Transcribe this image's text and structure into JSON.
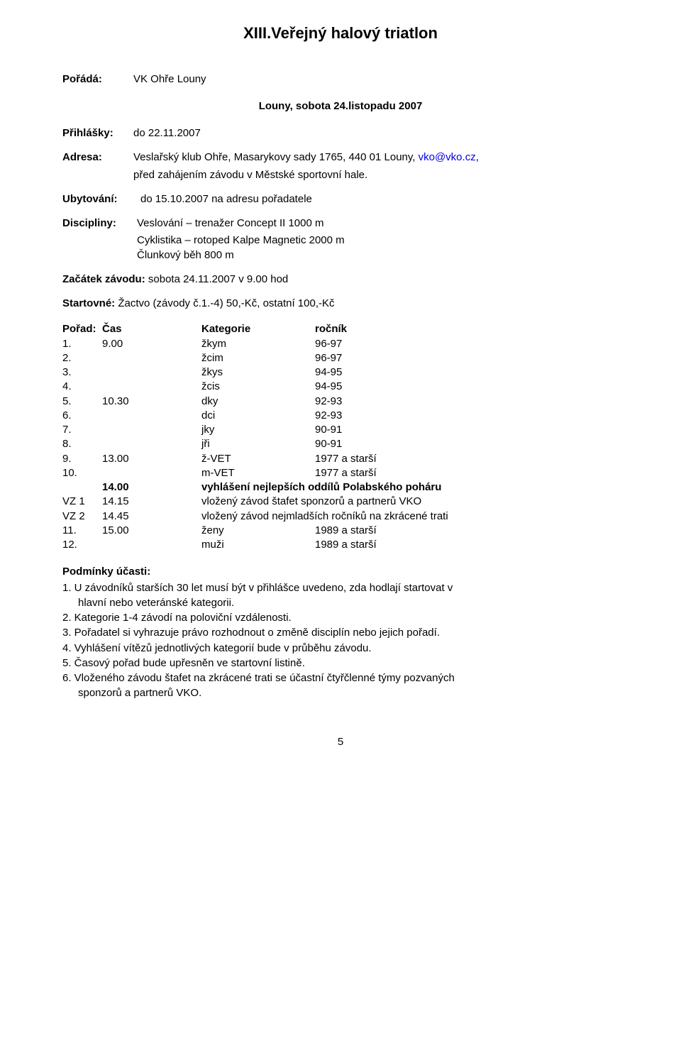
{
  "title": "XIII.Veřejný halový triatlon",
  "organizer": {
    "label": "Pořádá:",
    "value": "VK Ohře Louny"
  },
  "subtitle": "Louny,  sobota 24.listopadu 2007",
  "entries": {
    "label": "Přihlášky:",
    "value": "do 22.11.2007"
  },
  "address": {
    "label": "Adresa:",
    "line1_pre": "Veslařský klub Ohře, Masarykovy sady 1765, 440 01 Louny, ",
    "link": "vko@vko.cz",
    "line1_post": ",",
    "line2": "před zahájením závodu v Městské sportovní hale."
  },
  "accommodation": {
    "label": "Ubytování:",
    "value": "do 15.10.2007 na adresu pořadatele"
  },
  "disciplines": {
    "label": "Discipliny:",
    "lines": [
      "Veslování – trenažer Concept II 1000 m",
      "Cyklistika – rotoped Kalpe Magnetic 2000 m",
      "Člunkový běh 800 m"
    ]
  },
  "start": {
    "label": "Začátek závodu:",
    "value": " sobota 24.11.2007 v 9.00 hod"
  },
  "fee": {
    "label": "Startovné:",
    "value": " Žactvo (závody č.1.-4) 50,-Kč, ostatní 100,-Kč"
  },
  "schedule_header": {
    "porad": "Pořad:",
    "cas": "Čas",
    "kategorie": "Kategorie",
    "rocnik": "ročník"
  },
  "schedule": [
    {
      "num": "1.",
      "time": "9.00",
      "cat": "žkym",
      "year": "96-97"
    },
    {
      "num": "2.",
      "time": "",
      "cat": "žcim",
      "year": "96-97"
    },
    {
      "num": "3.",
      "time": "",
      "cat": "žkys",
      "year": "94-95"
    },
    {
      "num": "4.",
      "time": "",
      "cat": "žcis",
      "year": "94-95"
    },
    {
      "num": "5.",
      "time": "10.30",
      "cat": "dky",
      "year": "92-93"
    },
    {
      "num": "6.",
      "time": "",
      "cat": "dci",
      "year": "92-93"
    },
    {
      "num": "7.",
      "time": "",
      "cat": "jky",
      "year": "90-91"
    },
    {
      "num": "8.",
      "time": "",
      "cat": "jři",
      "year": "90-91"
    },
    {
      "num": "9.",
      "time": "13.00",
      "cat": "ž-VET",
      "year": "1977 a starší"
    },
    {
      "num": "10.",
      "time": "",
      "cat": "m-VET",
      "year": "1977 a starší"
    }
  ],
  "special_rows": [
    {
      "num": "",
      "time": "14.00",
      "text": "vyhlášení nejlepších oddílů Polabského poháru",
      "bold": true
    },
    {
      "num": "VZ 1",
      "time": "14.15",
      "text": "vložený závod štafet sponzorů a partnerů VKO",
      "bold": false
    },
    {
      "num": "VZ 2",
      "time": "14.45",
      "text": "vložený závod nejmladších ročníků na zkrácené trati",
      "bold": false
    }
  ],
  "schedule_tail": [
    {
      "num": "11.",
      "time": "15.00",
      "cat": "ženy",
      "year": "1989 a starší"
    },
    {
      "num": "12.",
      "time": "",
      "cat": "muži",
      "year": "1989 a starší"
    }
  ],
  "conditions": {
    "title": "Podmínky účasti:",
    "items": [
      {
        "n": "1.",
        "text": "U závodníků starších 30 let musí být v přihlášce uvedeno, zda hodlají startovat v",
        "sub": "hlavní nebo veteránské kategorii."
      },
      {
        "n": "2.",
        "text": "Kategorie 1-4 závodí na poloviční vzdálenosti."
      },
      {
        "n": "3.",
        "text": "Pořadatel si vyhrazuje právo rozhodnout o změně disciplín nebo jejich pořadí."
      },
      {
        "n": "4.",
        "text": "Vyhlášení vítězů jednotlivých kategorií bude v průběhu závodu."
      },
      {
        "n": "5.",
        "text": "Časový pořad bude upřesněn ve startovní listině."
      },
      {
        "n": "6.",
        "text": "Vloženého závodu štafet na zkrácené trati se účastní čtyřčlenné týmy pozvaných",
        "sub": "sponzorů a partnerů VKO."
      }
    ]
  },
  "page_number": "5"
}
